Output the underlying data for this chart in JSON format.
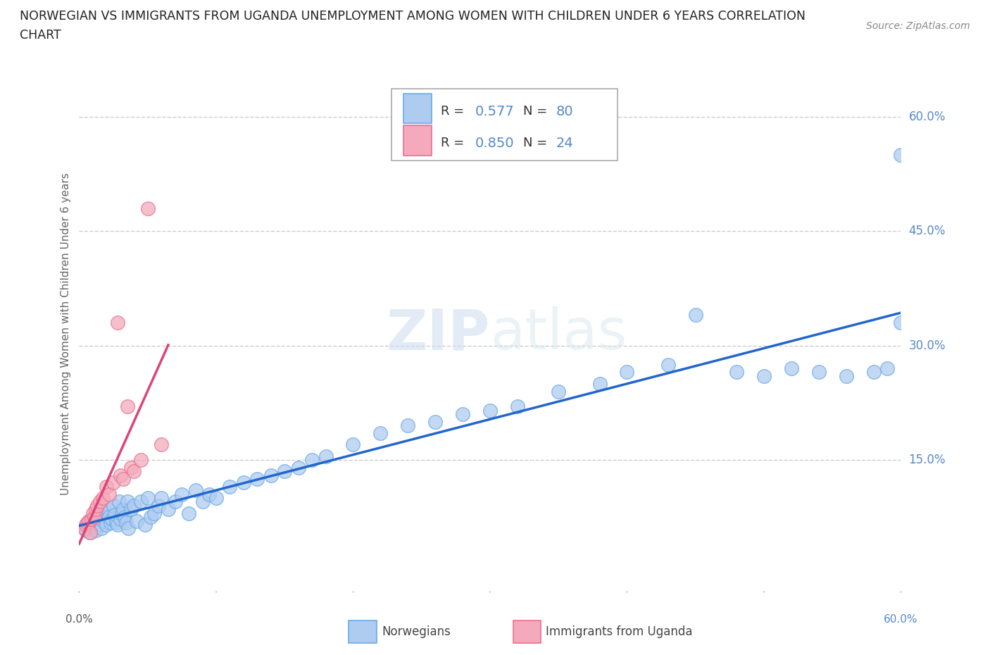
{
  "title_line1": "NORWEGIAN VS IMMIGRANTS FROM UGANDA UNEMPLOYMENT AMONG WOMEN WITH CHILDREN UNDER 6 YEARS CORRELATION",
  "title_line2": "CHART",
  "source_text": "Source: ZipAtlas.com",
  "ylabel": "Unemployment Among Women with Children Under 6 years",
  "xlim": [
    0.0,
    0.6
  ],
  "ylim": [
    -0.02,
    0.65
  ],
  "ytick_labels": [
    "60.0%",
    "45.0%",
    "30.0%",
    "15.0%"
  ],
  "ytick_values": [
    0.6,
    0.45,
    0.3,
    0.15
  ],
  "grid_color": "#cccccc",
  "background_color": "#ffffff",
  "norwegians_color": "#aecbf0",
  "uganda_color": "#f4aabc",
  "norwegians_edge": "#6aaae8",
  "uganda_edge": "#e87090",
  "regression_norwegian_color": "#2266cc",
  "regression_uganda_color": "#dd4477",
  "R_norwegian": 0.577,
  "N_norwegian": 80,
  "R_uganda": 0.85,
  "N_uganda": 24,
  "legend_label_norwegian": "Norwegians",
  "legend_label_uganda": "Immigrants from Uganda",
  "watermark": "ZIPatlas",
  "tick_color": "#5588cc"
}
